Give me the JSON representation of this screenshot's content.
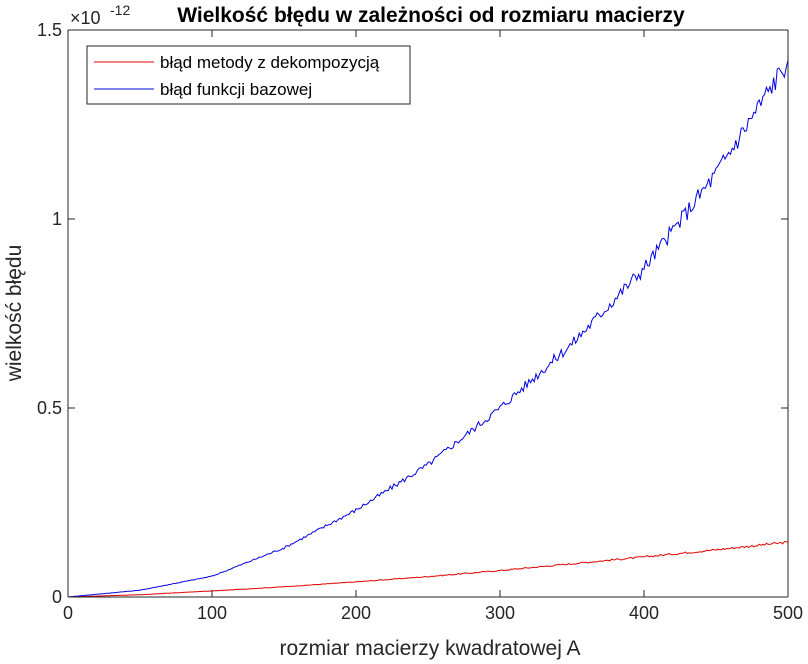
{
  "chart_data": {
    "type": "line",
    "title": "Wielkość błędu w zależności od rozmiaru macierzy",
    "xlabel": "rozmiar macierzy kwadratowej A",
    "ylabel": "wielkość błędu",
    "y_exponent_base": "×10",
    "y_exponent_power": "-12",
    "xlim": [
      0,
      500
    ],
    "ylim": [
      0,
      1.5
    ],
    "xticks": [
      0,
      100,
      200,
      300,
      400,
      500
    ],
    "yticks": [
      0,
      0.5,
      1,
      1.5
    ],
    "ytick_labels": [
      "0",
      "0.5",
      "1",
      "1.5"
    ],
    "legend_position": "top-left",
    "series": [
      {
        "name": "błąd metody z dekompozycją",
        "color": "#e00000",
        "x": [
          0,
          50,
          100,
          150,
          200,
          250,
          300,
          350,
          400,
          450,
          500
        ],
        "y": [
          0,
          0.006,
          0.016,
          0.027,
          0.04,
          0.054,
          0.07,
          0.088,
          0.106,
          0.125,
          0.145
        ]
      },
      {
        "name": "błąd funkcji bazowej",
        "color": "#0000e0",
        "x": [
          0,
          50,
          100,
          150,
          200,
          250,
          300,
          350,
          400,
          450,
          500
        ],
        "y": [
          0,
          0.018,
          0.055,
          0.13,
          0.23,
          0.35,
          0.5,
          0.67,
          0.87,
          1.12,
          1.42
        ]
      }
    ]
  }
}
